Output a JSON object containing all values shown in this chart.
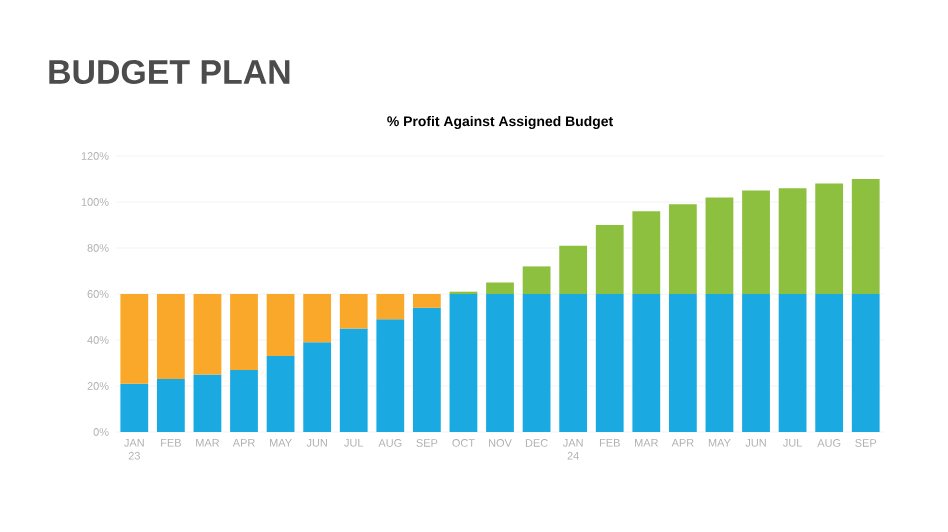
{
  "chart_data": {
    "type": "bar",
    "stacked": true,
    "title": "BUDGET PLAN",
    "subtitle": "% Profit Against Assigned Budget",
    "categories": [
      "JAN 23",
      "FEB",
      "MAR",
      "APR",
      "MAY",
      "JUN",
      "JUL",
      "AUG",
      "SEP",
      "OCT",
      "NOV",
      "DEC",
      "JAN 24",
      "FEB",
      "MAR",
      "APR",
      "MAY",
      "JUN",
      "JUL",
      "AUG",
      "SEP"
    ],
    "series": [
      {
        "color": "#1aa9e1",
        "values": [
          21,
          23,
          25,
          27,
          33,
          39,
          45,
          49,
          54,
          60,
          60,
          60,
          60,
          60,
          60,
          60,
          60,
          60,
          60,
          60,
          60
        ]
      },
      {
        "color": "#f9a82a",
        "values": [
          39,
          37,
          35,
          33,
          27,
          21,
          15,
          11,
          6,
          null,
          null,
          null,
          null,
          null,
          null,
          null,
          null,
          null,
          null,
          null,
          null
        ]
      },
      {
        "color": "#8dc03f",
        "values": [
          null,
          null,
          null,
          null,
          null,
          null,
          null,
          null,
          null,
          1,
          5,
          12,
          21,
          30,
          36,
          39,
          42,
          45,
          46,
          48,
          50
        ]
      }
    ],
    "ylim": [
      0,
      120
    ],
    "yticks": [
      {
        "value": 0,
        "label": "0%"
      },
      {
        "value": 20,
        "label": "20%"
      },
      {
        "value": 40,
        "label": "40%"
      },
      {
        "value": 60,
        "label": "60%"
      },
      {
        "value": 80,
        "label": "80%"
      },
      {
        "value": 100,
        "label": "100%"
      },
      {
        "value": 120,
        "label": "120%"
      }
    ],
    "grid": "y"
  }
}
